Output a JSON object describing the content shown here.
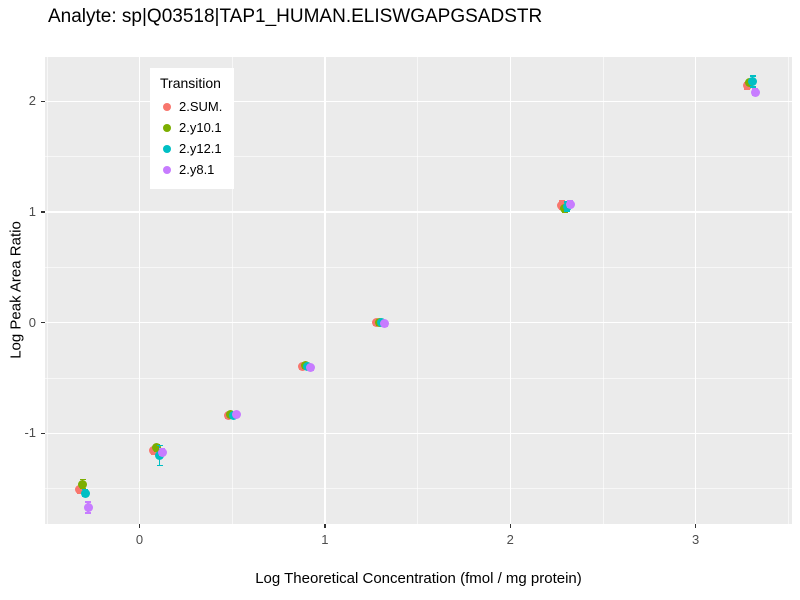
{
  "title": "Analyte: sp|Q03518|TAP1_HUMAN.ELISWGAPGSADSTR",
  "chart_data": {
    "type": "scatter",
    "title": "Analyte: sp|Q03518|TAP1_HUMAN.ELISWGAPGSADSTR",
    "xlabel": "Log Theoretical Concentration (fmol / mg protein)",
    "ylabel": "Log Peak Area Ratio",
    "xlim": [
      -0.51,
      3.52
    ],
    "ylim": [
      -1.82,
      2.4
    ],
    "x_ticks": [
      0,
      1,
      2,
      3
    ],
    "x_tick_labels": [
      "0",
      "1",
      "2",
      "3"
    ],
    "y_ticks": [
      -1,
      0,
      1,
      2
    ],
    "y_tick_labels": [
      "-1",
      "0",
      "1",
      "2"
    ],
    "x_minor_ticks": [
      -0.5,
      0.5,
      1.5,
      2.5,
      3.5
    ],
    "y_minor_ticks": [
      -1.5,
      -0.5,
      0.5,
      1.5
    ],
    "grid": true,
    "legend": {
      "title": "Transition",
      "position": "inset-top-left"
    },
    "colors": {
      "panel_bg": "#EBEBEB",
      "grid": "#FFFFFF",
      "tick_text": "#4D4D4D",
      "axis_text": "#000000"
    },
    "x": [
      -0.3,
      0.1,
      0.5,
      0.9,
      1.3,
      2.3,
      3.3
    ],
    "series": [
      {
        "name": "2.SUM.",
        "color": "#F8766D",
        "y": [
          -1.51,
          -1.16,
          -0.84,
          -0.4,
          0.0,
          1.06,
          2.14
        ],
        "err": [
          0.03,
          0.03,
          0.02,
          0.02,
          0.02,
          0.04,
          0.03
        ]
      },
      {
        "name": "2.y10.1",
        "color": "#7CAE00",
        "y": [
          -1.46,
          -1.13,
          -0.83,
          -0.39,
          0.0,
          1.03,
          2.17
        ],
        "err": [
          0.04,
          0.03,
          0.02,
          0.02,
          0.02,
          0.03,
          0.02
        ]
      },
      {
        "name": "2.y12.1",
        "color": "#00BFC4",
        "y": [
          -1.54,
          -1.2,
          -0.84,
          -0.4,
          0.0,
          1.05,
          2.18
        ],
        "err": [
          0.03,
          0.09,
          0.02,
          0.02,
          0.02,
          0.04,
          0.05
        ]
      },
      {
        "name": "2.y8.1",
        "color": "#C77CFF",
        "y": [
          -1.67,
          -1.17,
          -0.83,
          -0.41,
          -0.01,
          1.07,
          2.08
        ],
        "err": [
          0.05,
          0.03,
          0.02,
          0.02,
          0.02,
          0.03,
          0.03
        ]
      }
    ]
  }
}
